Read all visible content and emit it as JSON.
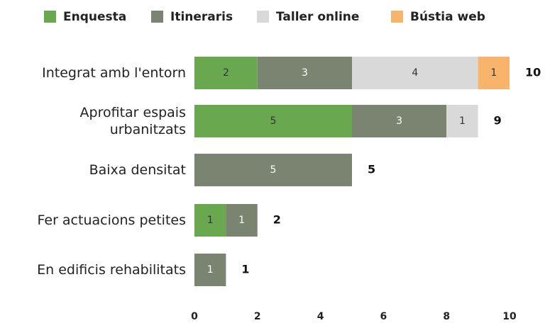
{
  "chart_data": {
    "type": "stacked-barh",
    "categories": [
      "Integrat amb l'entorn",
      "Aprofitar espais urbanitzats",
      "Baixa densitat",
      "Fer actuacions petites",
      "En edificis rehabilitats"
    ],
    "series": [
      {
        "name": "Enquesta",
        "color": "#6aa84f",
        "label_color": "#333333",
        "values": [
          2,
          5,
          null,
          1,
          null
        ]
      },
      {
        "name": "Itineraris",
        "color": "#7b8470",
        "label_color": "#ffffff",
        "values": [
          3,
          3,
          5,
          1,
          1
        ]
      },
      {
        "name": "Taller online",
        "color": "#d9d9d9",
        "label_color": "#333333",
        "values": [
          4,
          1,
          null,
          null,
          null
        ]
      },
      {
        "name": "Bústia web",
        "color": "#f9b46b",
        "label_color": "#333333",
        "values": [
          1,
          null,
          null,
          null,
          null
        ]
      }
    ],
    "totals": [
      10,
      9,
      5,
      2,
      1
    ],
    "xlim": [
      0,
      10
    ],
    "xticks": [
      0,
      2,
      4,
      6,
      8,
      10
    ],
    "legend": "top"
  }
}
